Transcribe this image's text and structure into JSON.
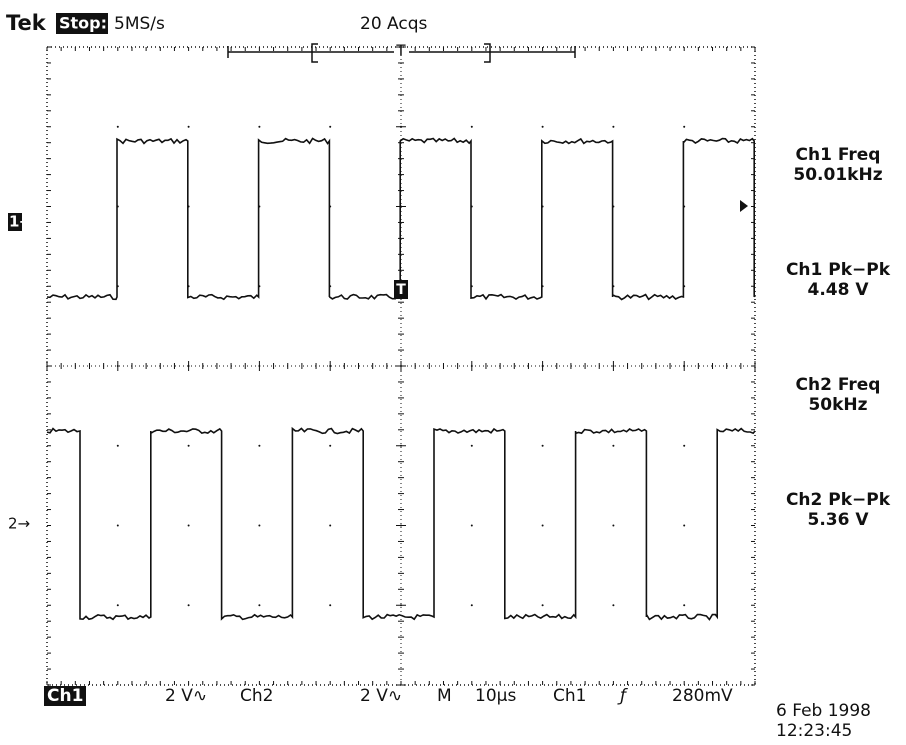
{
  "header": {
    "brand": "Tek",
    "state": "Stop:",
    "sample_rate": "5MS/s",
    "acquisitions": "20 Acqs",
    "record_marker": "T"
  },
  "markers": {
    "ch1": "1→",
    "ch2": "2→",
    "trigger": "T"
  },
  "measurements": [
    {
      "label": "Ch1 Freq",
      "value": "50.01kHz"
    },
    {
      "label": "Ch1 Pk−Pk",
      "value": "4.48 V"
    },
    {
      "label": "Ch2 Freq",
      "value": "50kHz"
    },
    {
      "label": "Ch2 Pk−Pk",
      "value": "5.36 V"
    }
  ],
  "footer": {
    "ch1": "Ch1",
    "ch1_scale": "2 V∿",
    "ch2": "Ch2",
    "ch2_scale": "2 V∿",
    "timebase_label": "M",
    "timebase": "10µs",
    "trigger_source": "Ch1",
    "trigger_slope": "ƒ",
    "trigger_level": "280mV"
  },
  "timestamp": {
    "date": "6 Feb 1998",
    "time": "12:23:45"
  }
}
